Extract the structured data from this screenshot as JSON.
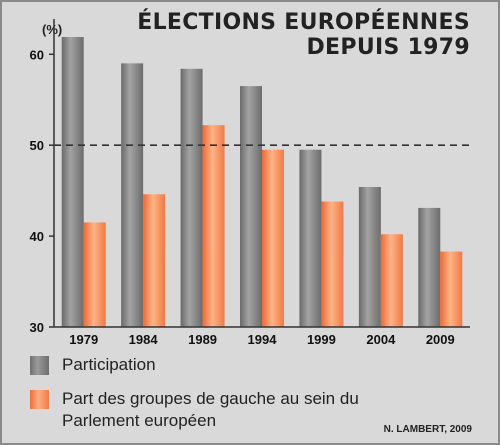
{
  "title_line1": "ÉLECTIONS EUROPÉENNES",
  "title_line2": "DEPUIS 1979",
  "unit_label": "(%)",
  "credit": "N. LAMBERT, 2009",
  "colors": {
    "participation": "#8c8c8c",
    "gauche": "#f5834e",
    "background": "#d9d9d9"
  },
  "chart_data": {
    "type": "bar",
    "categories": [
      "1979",
      "1984",
      "1989",
      "1994",
      "1999",
      "2004",
      "2009"
    ],
    "series": [
      {
        "name": "Participation",
        "values": [
          61.9,
          59.0,
          58.4,
          56.5,
          49.5,
          45.4,
          43.1
        ]
      },
      {
        "name": "Part des groupes de gauche au sein du Parlement européen",
        "values": [
          41.5,
          44.6,
          52.2,
          49.5,
          43.8,
          40.2,
          38.3
        ]
      }
    ],
    "yticks": [
      30,
      40,
      50,
      60
    ],
    "ylim": [
      30,
      63
    ],
    "reference_line": 50,
    "title": "ÉLECTIONS EUROPÉENNES DEPUIS 1979",
    "ylabel": "(%)",
    "grid": false
  }
}
